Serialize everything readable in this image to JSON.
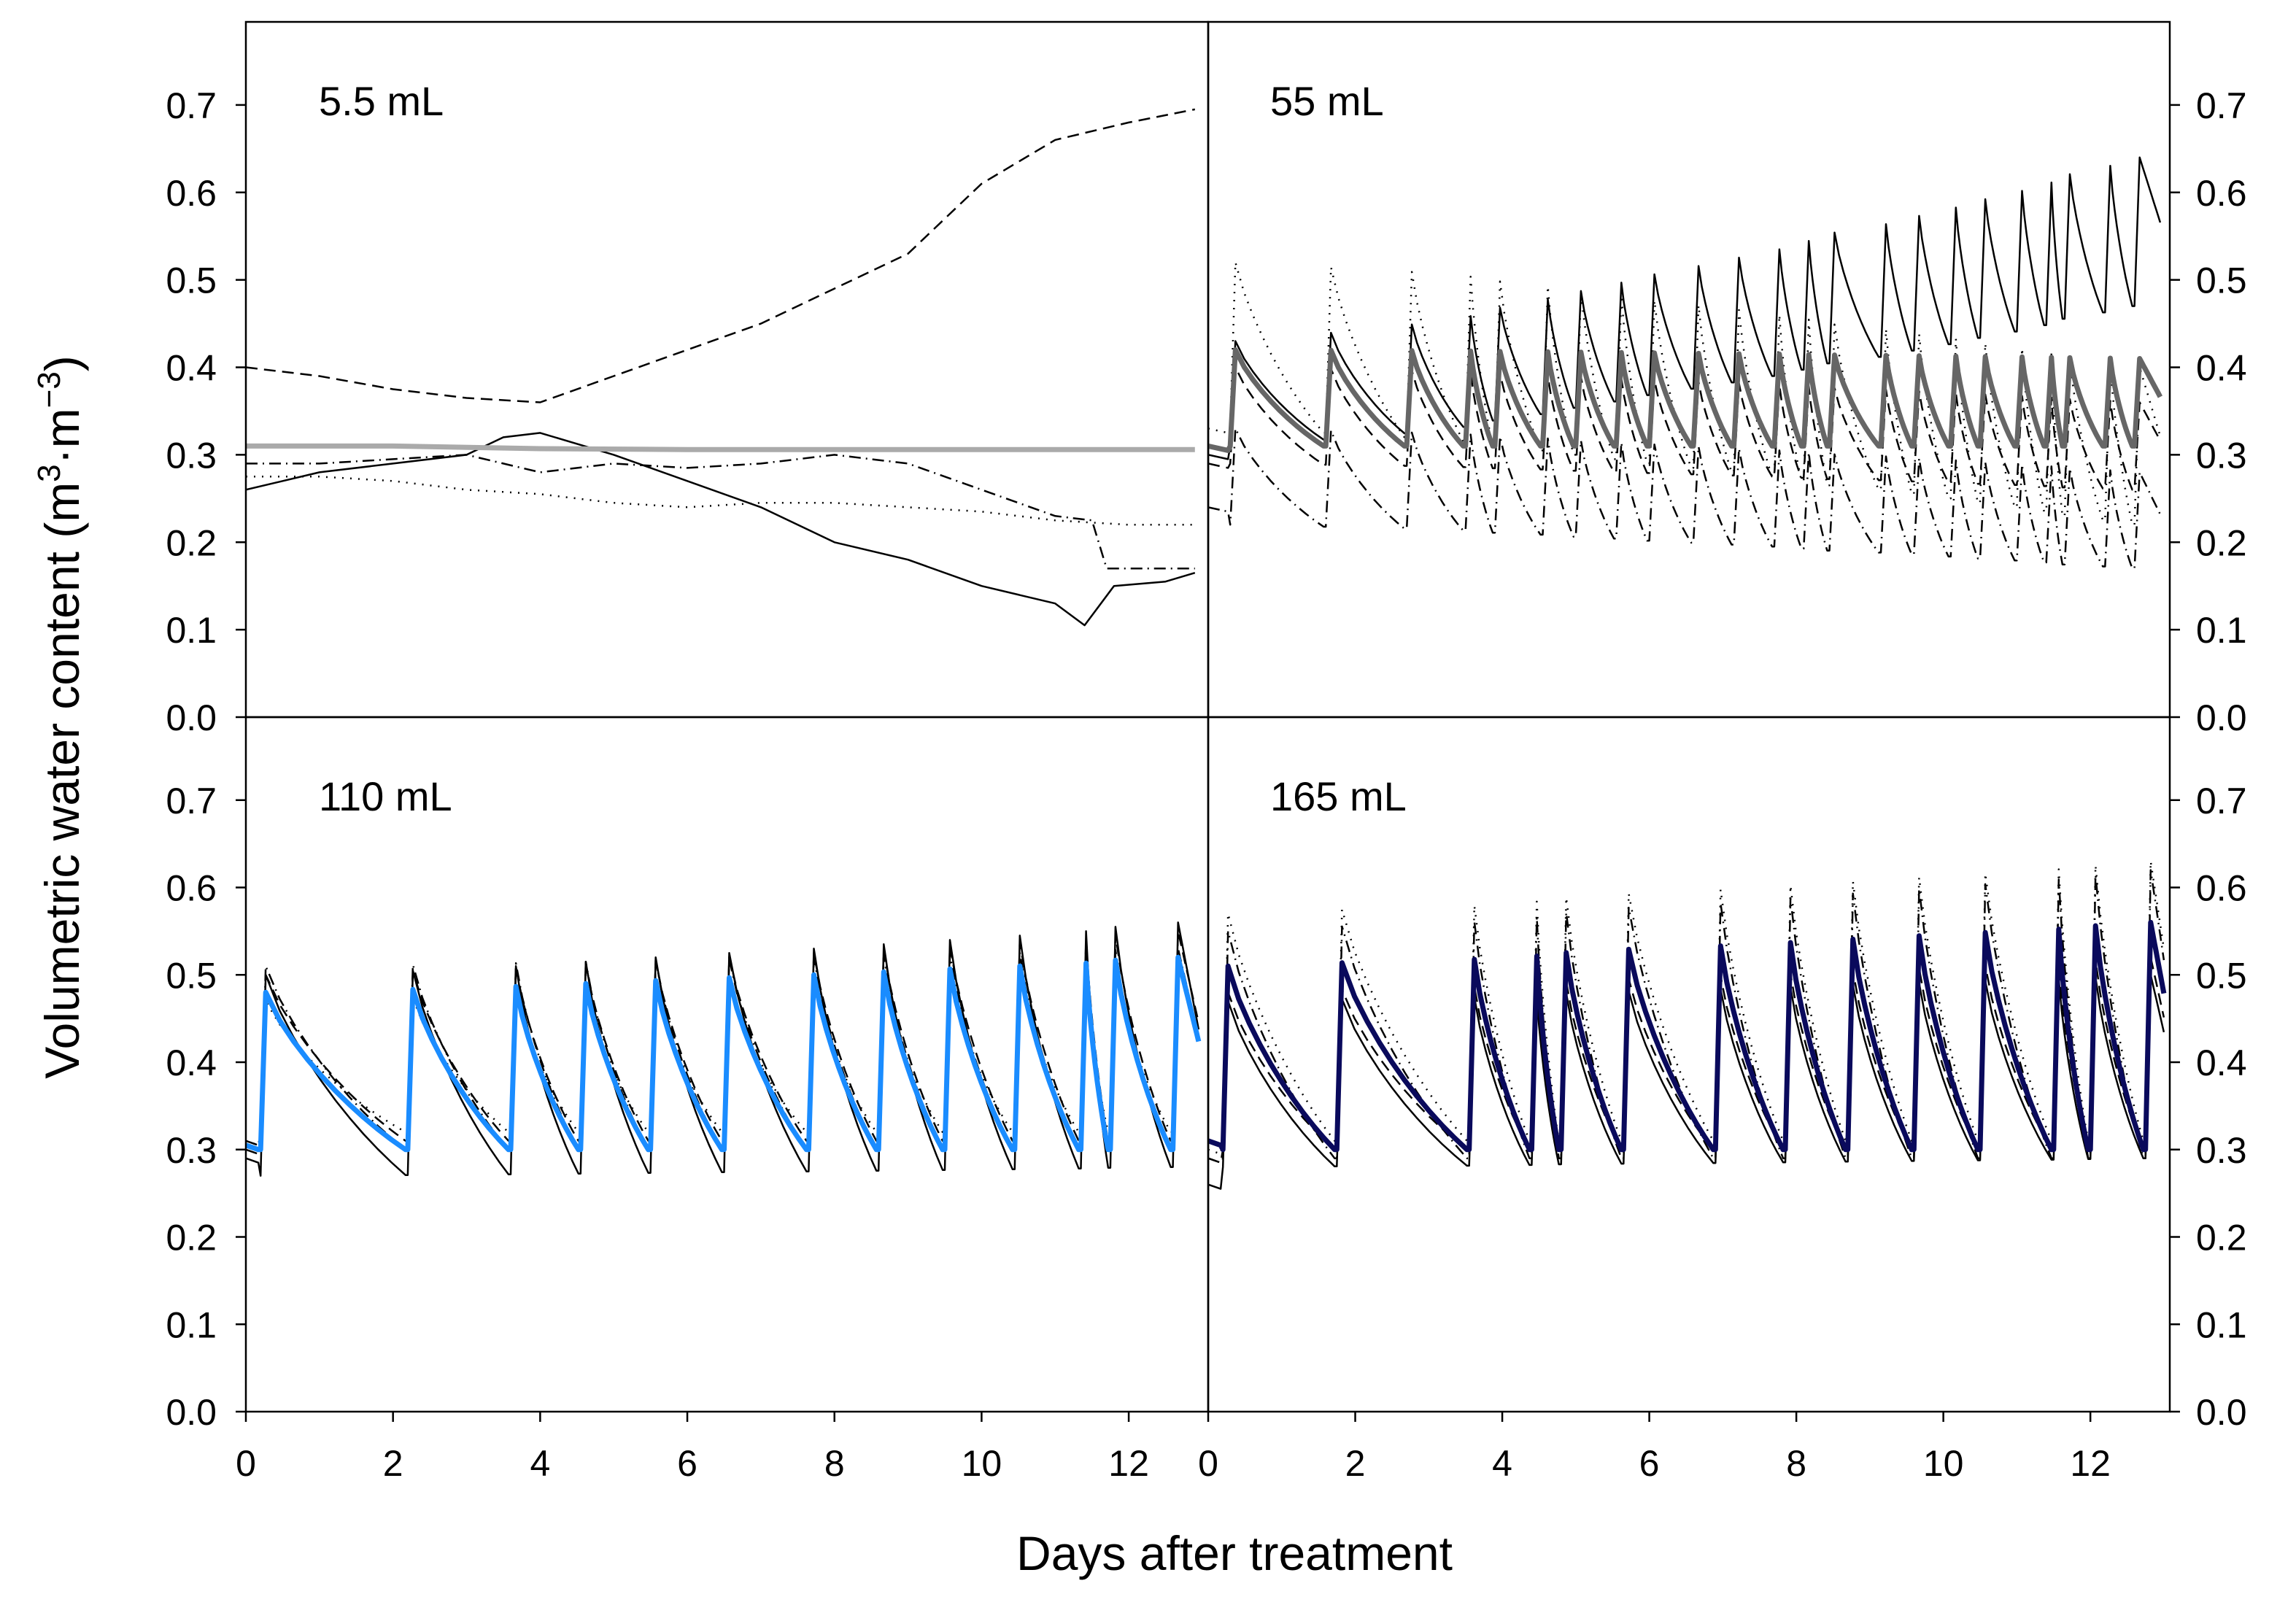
{
  "chart_data": {
    "type": "line",
    "xlabel": "Days after treatment",
    "ylabel": "Volumetric water content (m³·m⁻³)",
    "ylabel_parts": {
      "main": "Volumetric water content (m",
      "sup1": "3",
      "mid": "·m",
      "sup2": "−3",
      "end": ")"
    },
    "xlim": [
      0,
      13.08
    ],
    "ylim": [
      0,
      0.795
    ],
    "x_ticks": [
      "0",
      "2",
      "4",
      "6",
      "8",
      "10",
      "12"
    ],
    "x_tick_values": [
      0,
      2,
      4,
      6,
      8,
      10,
      12
    ],
    "y_ticks": [
      "0.0",
      "0.1",
      "0.2",
      "0.3",
      "0.4",
      "0.5",
      "0.6",
      "0.7"
    ],
    "y_tick_values": [
      0,
      0.1,
      0.2,
      0.3,
      0.4,
      0.5,
      0.6,
      0.7
    ],
    "panels": [
      {
        "label": "5.5 mL",
        "mode": "points",
        "series": [
          {
            "name": "sensor-dashed",
            "style": "dashed",
            "color": "#000000",
            "points": [
              [
                0,
                0.4
              ],
              [
                1,
                0.39
              ],
              [
                2,
                0.375
              ],
              [
                3,
                0.365
              ],
              [
                4,
                0.36
              ],
              [
                5,
                0.39
              ],
              [
                6,
                0.42
              ],
              [
                7,
                0.45
              ],
              [
                8,
                0.49
              ],
              [
                9,
                0.53
              ],
              [
                9.5,
                0.57
              ],
              [
                10,
                0.61
              ],
              [
                11,
                0.66
              ],
              [
                12,
                0.68
              ],
              [
                12.9,
                0.695
              ]
            ]
          },
          {
            "name": "sensor-solid",
            "style": "solid",
            "color": "#000000",
            "points": [
              [
                0,
                0.26
              ],
              [
                1,
                0.28
              ],
              [
                2,
                0.29
              ],
              [
                3,
                0.3
              ],
              [
                3.5,
                0.32
              ],
              [
                4,
                0.325
              ],
              [
                5,
                0.3
              ],
              [
                6,
                0.27
              ],
              [
                7,
                0.24
              ],
              [
                8,
                0.2
              ],
              [
                9,
                0.18
              ],
              [
                10,
                0.15
              ],
              [
                11,
                0.13
              ],
              [
                11.4,
                0.105
              ],
              [
                11.8,
                0.15
              ],
              [
                12.5,
                0.155
              ],
              [
                12.9,
                0.165
              ]
            ]
          },
          {
            "name": "sensor-dashdot",
            "style": "dashdot",
            "color": "#000000",
            "points": [
              [
                0,
                0.29
              ],
              [
                1,
                0.29
              ],
              [
                2,
                0.295
              ],
              [
                3,
                0.3
              ],
              [
                4,
                0.28
              ],
              [
                5,
                0.29
              ],
              [
                6,
                0.285
              ],
              [
                7,
                0.29
              ],
              [
                8,
                0.3
              ],
              [
                9,
                0.29
              ],
              [
                10,
                0.26
              ],
              [
                11,
                0.23
              ],
              [
                11.5,
                0.225
              ],
              [
                11.7,
                0.17
              ],
              [
                12.9,
                0.17
              ]
            ]
          },
          {
            "name": "sensor-dotted",
            "style": "dotted",
            "color": "#000000",
            "points": [
              [
                0,
                0.275
              ],
              [
                1,
                0.275
              ],
              [
                2,
                0.27
              ],
              [
                3,
                0.26
              ],
              [
                4,
                0.255
              ],
              [
                5,
                0.245
              ],
              [
                6,
                0.24
              ],
              [
                7,
                0.245
              ],
              [
                8,
                0.245
              ],
              [
                9,
                0.24
              ],
              [
                10,
                0.235
              ],
              [
                11,
                0.225
              ],
              [
                12,
                0.22
              ],
              [
                12.9,
                0.22
              ]
            ]
          },
          {
            "name": "mean",
            "style": "mean",
            "color": "#aaaaaa",
            "points": [
              [
                0,
                0.31
              ],
              [
                2,
                0.31
              ],
              [
                4,
                0.307
              ],
              [
                6,
                0.306
              ],
              [
                8,
                0.306
              ],
              [
                10,
                0.306
              ],
              [
                12,
                0.306
              ],
              [
                12.9,
                0.306
              ]
            ]
          }
        ]
      },
      {
        "label": "55 mL",
        "mode": "sawtooth",
        "events": [
          0.3,
          1.6,
          2.7,
          3.5,
          3.9,
          4.55,
          5.0,
          5.55,
          6.0,
          6.6,
          7.15,
          7.7,
          8.1,
          8.45,
          9.15,
          9.6,
          10.1,
          10.5,
          11.0,
          11.4,
          11.65,
          12.2,
          12.6
        ],
        "end": 12.95,
        "series": [
          {
            "name": "sensor-solid",
            "style": "solid",
            "color": "#000000",
            "start": 0.3,
            "peak": [
              0.43,
              0.64
            ],
            "trough": [
              0.31,
              0.47
            ]
          },
          {
            "name": "sensor-dotted",
            "style": "dotted",
            "color": "#000000",
            "start": 0.33,
            "peak": [
              0.52,
              0.4
            ],
            "trough": [
              0.33,
              0.22
            ]
          },
          {
            "name": "sensor-dashed",
            "style": "dashed",
            "color": "#000000",
            "start": 0.29,
            "peak": [
              0.4,
              0.36
            ],
            "trough": [
              0.29,
              0.26
            ]
          },
          {
            "name": "sensor-dashdot",
            "style": "dashdot",
            "color": "#000000",
            "start": 0.24,
            "peak": [
              0.33,
              0.28
            ],
            "trough": [
              0.22,
              0.17
            ]
          },
          {
            "name": "mean",
            "style": "mean",
            "color": "#666666",
            "start": 0.31,
            "peak": [
              0.42,
              0.41
            ],
            "trough": [
              0.31,
              0.31
            ]
          }
        ]
      },
      {
        "label": "110 mL",
        "mode": "sawtooth",
        "events": [
          0.2,
          2.2,
          3.6,
          4.55,
          5.5,
          6.5,
          7.65,
          8.6,
          9.5,
          10.45,
          11.35,
          11.75,
          12.6
        ],
        "end": 12.95,
        "series": [
          {
            "name": "sensor-solid",
            "style": "solid",
            "color": "#000000",
            "start": 0.29,
            "peak": [
              0.5,
              0.56
            ],
            "trough": [
              0.27,
              0.28
            ]
          },
          {
            "name": "sensor-dashed",
            "style": "dashed",
            "color": "#000000",
            "start": 0.31,
            "peak": [
              0.5,
              0.55
            ],
            "trough": [
              0.31,
              0.31
            ]
          },
          {
            "name": "sensor-dotted",
            "style": "dotted",
            "color": "#000000",
            "start": 0.31,
            "peak": [
              0.47,
              0.51
            ],
            "trough": [
              0.32,
              0.32
            ]
          },
          {
            "name": "sensor-dashdot",
            "style": "dashdot",
            "color": "#000000",
            "start": 0.3,
            "peak": [
              0.51,
              0.53
            ],
            "trough": [
              0.3,
              0.3
            ]
          },
          {
            "name": "mean",
            "style": "mean",
            "color": "#1a8cff",
            "start": 0.305,
            "peak": [
              0.48,
              0.52
            ],
            "trough": [
              0.3,
              0.3
            ]
          }
        ]
      },
      {
        "label": "165 mL",
        "mode": "sawtooth",
        "events": [
          0.2,
          1.75,
          3.55,
          4.4,
          4.8,
          5.65,
          6.9,
          7.85,
          8.7,
          9.6,
          10.5,
          11.5,
          12.0,
          12.75
        ],
        "end": 13.0,
        "series": [
          {
            "name": "sensor-solid",
            "style": "solid",
            "color": "#000000",
            "start": 0.26,
            "peak": [
              0.47,
              0.5
            ],
            "trough": [
              0.28,
              0.29
            ]
          },
          {
            "name": "sensor-dashed",
            "style": "dashed",
            "color": "#000000",
            "start": 0.29,
            "peak": [
              0.48,
              0.52
            ],
            "trough": [
              0.3,
              0.3
            ]
          },
          {
            "name": "sensor-dotted",
            "style": "dotted",
            "color": "#000000",
            "start": 0.3,
            "peak": [
              0.57,
              0.63
            ],
            "trough": [
              0.31,
              0.31
            ]
          },
          {
            "name": "sensor-dashdot",
            "style": "dashdot",
            "color": "#000000",
            "start": 0.29,
            "peak": [
              0.55,
              0.62
            ],
            "trough": [
              0.29,
              0.29
            ]
          },
          {
            "name": "mean",
            "style": "mean",
            "color": "#0a0a5c",
            "start": 0.31,
            "peak": [
              0.51,
              0.56
            ],
            "trough": [
              0.3,
              0.3
            ]
          }
        ]
      }
    ]
  }
}
